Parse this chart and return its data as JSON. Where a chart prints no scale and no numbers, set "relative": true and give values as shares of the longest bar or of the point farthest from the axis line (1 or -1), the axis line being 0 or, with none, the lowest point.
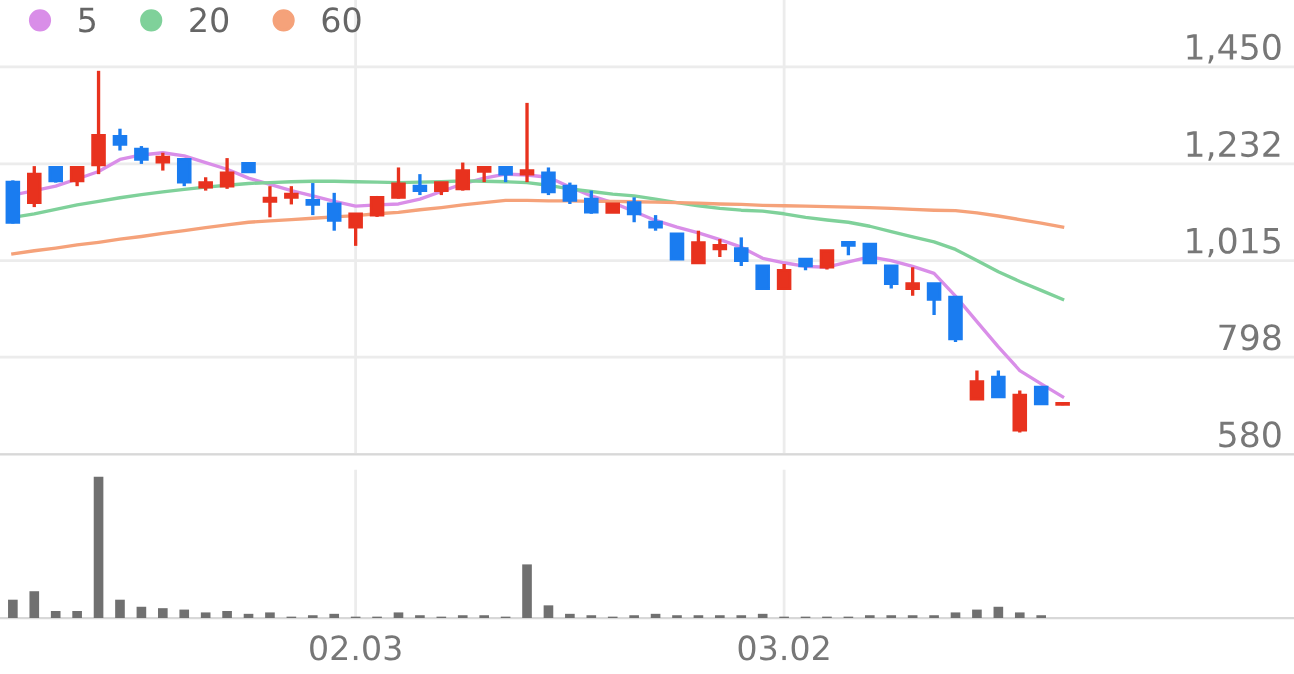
{
  "chart_data": [
    {
      "type": "candlestick",
      "categories": [
        null,
        null,
        null,
        null,
        null,
        null,
        null,
        null,
        null,
        null,
        null,
        null,
        null,
        null,
        null,
        null,
        "02.03",
        null,
        null,
        null,
        null,
        null,
        null,
        null,
        null,
        null,
        null,
        null,
        null,
        null,
        null,
        null,
        null,
        null,
        null,
        null,
        "03.02",
        null,
        null,
        null,
        null,
        null,
        null,
        null,
        null,
        null,
        null,
        null,
        null,
        null
      ],
      "ohlc": [
        [
          1191,
          1195,
          1098,
          1101
        ],
        [
          1145,
          1227,
          1135,
          1209
        ],
        [
          1224,
          1227,
          1190,
          1194
        ],
        [
          1194,
          1227,
          1182,
          1224
        ],
        [
          1230,
          1441,
          1209,
          1296
        ],
        [
          1294,
          1311,
          1262,
          1276
        ],
        [
          1265,
          1272,
          1232,
          1242
        ],
        [
          1236,
          1257,
          1217,
          1247
        ],
        [
          1242,
          1242,
          1182,
          1191
        ],
        [
          1180,
          1202,
          1172,
          1190
        ],
        [
          1182,
          1245,
          1176,
          1212
        ],
        [
          1233,
          1235,
          1212,
          1214
        ],
        [
          1148,
          1182,
          1112,
          1155
        ],
        [
          1157,
          1182,
          1141,
          1164
        ],
        [
          1150,
          1189,
          1117,
          1141
        ],
        [
          1142,
          1167,
          1082,
          1105
        ],
        [
          1090,
          1120,
          1048,
          1120
        ],
        [
          1117,
          1160,
          1113,
          1157
        ],
        [
          1157,
          1224,
          1154,
          1187
        ],
        [
          1182,
          1209,
          1162,
          1172
        ],
        [
          1172,
          1190,
          1162,
          1190
        ],
        [
          1176,
          1235,
          1172,
          1217
        ],
        [
          1215,
          1224,
          1191,
          1224
        ],
        [
          1224,
          1227,
          1191,
          1209
        ],
        [
          1209,
          1369,
          1191,
          1217
        ],
        [
          1212,
          1224,
          1162,
          1169
        ],
        [
          1182,
          1190,
          1142,
          1150
        ],
        [
          1153,
          1172,
          1120,
          1124
        ],
        [
          1123,
          1142,
          1123,
          1142
        ],
        [
          1145,
          1157,
          1101,
          1120
        ],
        [
          1101,
          1117,
          1082,
          1090
        ],
        [
          1075,
          1075,
          1018,
          1018
        ],
        [
          1010,
          1082,
          1007,
          1055
        ],
        [
          1041,
          1063,
          1023,
          1049
        ],
        [
          1042,
          1067,
          1003,
          1015
        ],
        [
          1003,
          1003,
          952,
          952
        ],
        [
          952,
          1007,
          952,
          993
        ],
        [
          1018,
          1018,
          993,
          1003
        ],
        [
          1000,
          1037,
          995,
          1037
        ],
        [
          1056,
          1056,
          1027,
          1049
        ],
        [
          1052,
          1054,
          1008,
          1010
        ],
        [
          1003,
          1003,
          952,
          963
        ],
        [
          952,
          1000,
          936,
          963
        ],
        [
          963,
          963,
          893,
          928
        ],
        [
          933,
          933,
          832,
          839
        ],
        [
          704,
          768,
          704,
          743
        ],
        [
          753,
          768,
          709,
          709
        ],
        [
          634,
          723,
          629,
          713
        ],
        [
          731,
          733,
          693,
          693
        ],
        [
          692,
          695,
          690,
          694
        ]
      ],
      "colors": [
        "#1a7cf0",
        "#e8321e",
        "#1a7cf0",
        "#e8321e",
        "#e8321e",
        "#1a7cf0",
        "#1a7cf0",
        "#e8321e",
        "#1a7cf0",
        "#e8321e",
        "#e8321e",
        "#1a7cf0",
        "#e8321e",
        "#e8321e",
        "#1a7cf0",
        "#1a7cf0",
        "#e8321e",
        "#e8321e",
        "#e8321e",
        "#1a7cf0",
        "#e8321e",
        "#e8321e",
        "#e8321e",
        "#1a7cf0",
        "#e8321e",
        "#1a7cf0",
        "#1a7cf0",
        "#1a7cf0",
        "#e8321e",
        "#1a7cf0",
        "#1a7cf0",
        "#1a7cf0",
        "#e8321e",
        "#e8321e",
        "#1a7cf0",
        "#1a7cf0",
        "#e8321e",
        "#1a7cf0",
        "#e8321e",
        "#1a7cf0",
        "#1a7cf0",
        "#1a7cf0",
        "#e8321e",
        "#1a7cf0",
        "#1a7cf0",
        "#e8321e",
        "#1a7cf0",
        "#e8321e",
        "#1a7cf0",
        "#e8321e"
      ],
      "series": [
        {
          "name": "5",
          "type": "line",
          "color": "#d98ee8",
          "values": [
            1162,
            1172,
            1182,
            1198,
            1215,
            1242,
            1252,
            1257,
            1250,
            1235,
            1220,
            1200,
            1186,
            1172,
            1160,
            1148,
            1137,
            1140,
            1142,
            1153,
            1170,
            1187,
            1200,
            1209,
            1207,
            1202,
            1180,
            1160,
            1145,
            1125,
            1105,
            1090,
            1077,
            1062,
            1045,
            1020,
            1010,
            1002,
            1000,
            1012,
            1023,
            1015,
            1002,
            986,
            935,
            878,
            821,
            768,
            738,
            709
          ]
        },
        {
          "name": "20",
          "type": "line",
          "color": "#7fd19a",
          "values": [
            1112,
            1120,
            1130,
            1140,
            1148,
            1156,
            1163,
            1169,
            1175,
            1180,
            1184,
            1188,
            1190,
            1192,
            1193,
            1193,
            1192,
            1191,
            1190,
            1191,
            1192,
            1194,
            1193,
            1192,
            1190,
            1184,
            1176,
            1170,
            1164,
            1160,
            1153,
            1145,
            1138,
            1132,
            1128,
            1126,
            1120,
            1112,
            1106,
            1101,
            1092,
            1080,
            1068,
            1057,
            1040,
            1015,
            990,
            968,
            948,
            928
          ]
        },
        {
          "name": "60",
          "type": "line",
          "color": "#f5a27a",
          "values": [
            1030,
            1037,
            1043,
            1050,
            1056,
            1063,
            1069,
            1076,
            1082,
            1089,
            1095,
            1101,
            1104,
            1107,
            1110,
            1113,
            1116,
            1120,
            1123,
            1129,
            1134,
            1140,
            1145,
            1150,
            1150,
            1149,
            1149,
            1148,
            1148,
            1147,
            1146,
            1145,
            1144,
            1142,
            1141,
            1139,
            1138,
            1137,
            1136,
            1135,
            1134,
            1132,
            1130,
            1128,
            1127,
            1122,
            1115,
            1107,
            1099,
            1090
          ]
        }
      ],
      "ylim": [
        580,
        1600
      ],
      "yticks": [
        {
          "value": 580,
          "label": "580"
        },
        {
          "value": 798,
          "label": "798"
        },
        {
          "value": 1015,
          "label": "1,015"
        },
        {
          "value": 1232,
          "label": "1,232"
        },
        {
          "value": 1450,
          "label": "1,450"
        }
      ],
      "grid": true,
      "legend": "top left",
      "tick_labels": "y"
    },
    {
      "type": "bar",
      "relative": true,
      "categories": [
        null,
        null,
        null,
        null,
        null,
        null,
        null,
        null,
        null,
        null,
        null,
        null,
        null,
        null,
        null,
        null,
        "02.03",
        null,
        null,
        null,
        null,
        null,
        null,
        null,
        null,
        null,
        null,
        null,
        null,
        null,
        null,
        null,
        null,
        null,
        null,
        null,
        "03.02",
        null,
        null,
        null,
        null,
        null,
        null,
        null,
        null,
        null,
        null,
        null,
        null,
        null
      ],
      "color": "#707070",
      "values": [
        0.13,
        0.19,
        0.05,
        0.05,
        1,
        0.13,
        0.08,
        0.07,
        0.06,
        0.04,
        0.05,
        0.03,
        0.04,
        0.01,
        0.02,
        0.03,
        0.01,
        0.01,
        0.04,
        0.02,
        0.01,
        0.02,
        0.02,
        0.01,
        0.38,
        0.09,
        0.03,
        0.02,
        0.01,
        0.02,
        0.03,
        0.02,
        0.02,
        0.02,
        0.02,
        0.03,
        0.01,
        0.01,
        0.01,
        0.01,
        0.02,
        0.02,
        0.02,
        0.02,
        0.04,
        0.06,
        0.08,
        0.04,
        0.02,
        0
      ],
      "grid": "x",
      "tick_labels": "x"
    }
  ]
}
